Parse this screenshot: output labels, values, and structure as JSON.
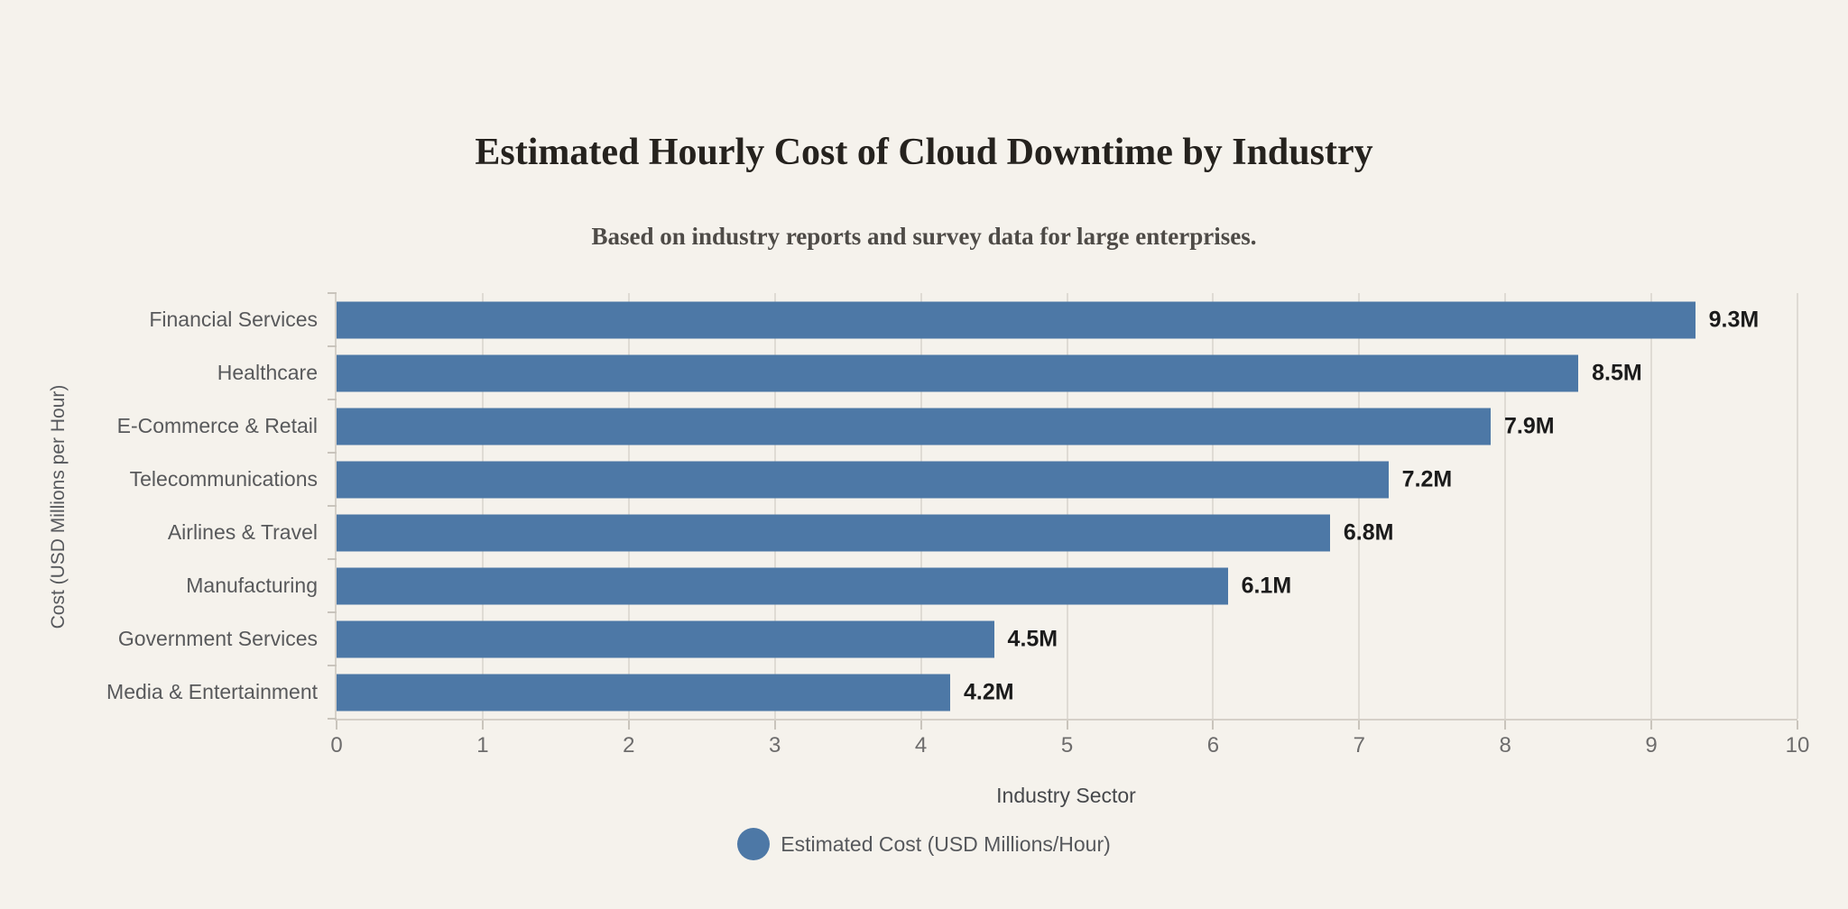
{
  "chart_data": {
    "type": "bar",
    "orientation": "horizontal",
    "title": "Estimated Hourly Cost of Cloud Downtime by Industry",
    "subtitle": "Based on industry reports and survey data for large enterprises.",
    "categories": [
      "Financial Services",
      "Healthcare",
      "E-Commerce & Retail",
      "Telecommunications",
      "Airlines & Travel",
      "Manufacturing",
      "Government Services",
      "Media & Entertainment"
    ],
    "values": [
      9.3,
      8.5,
      7.9,
      7.2,
      6.8,
      6.1,
      4.5,
      4.2
    ],
    "value_labels": [
      "9.3M",
      "8.5M",
      "7.9M",
      "7.2M",
      "6.8M",
      "6.1M",
      "4.5M",
      "4.2M"
    ],
    "xlabel": "Industry Sector",
    "ylabel": "Cost (USD Millions per Hour)",
    "xlim": [
      0,
      10
    ],
    "x_ticks": [
      0,
      1,
      2,
      3,
      4,
      5,
      6,
      7,
      8,
      9,
      10
    ],
    "grid": "vertical-only",
    "legend": {
      "label": "Estimated Cost (USD Millions/Hour)",
      "position": "bottom",
      "marker": "circle"
    }
  },
  "colors": {
    "background": "#f5f2ec",
    "bar": "#4d78a6",
    "grid": "#dfdbd4",
    "axis": "#d5d0c8",
    "tick": "#c9c4bc",
    "title_text": "#25221e",
    "subtitle_text": "#4e4b47",
    "category_text": "#58595b",
    "value_text": "#1b1b1b",
    "tick_text": "#6d6c6c",
    "axis_title_text": "#46484b",
    "legend_text": "#56585c"
  }
}
